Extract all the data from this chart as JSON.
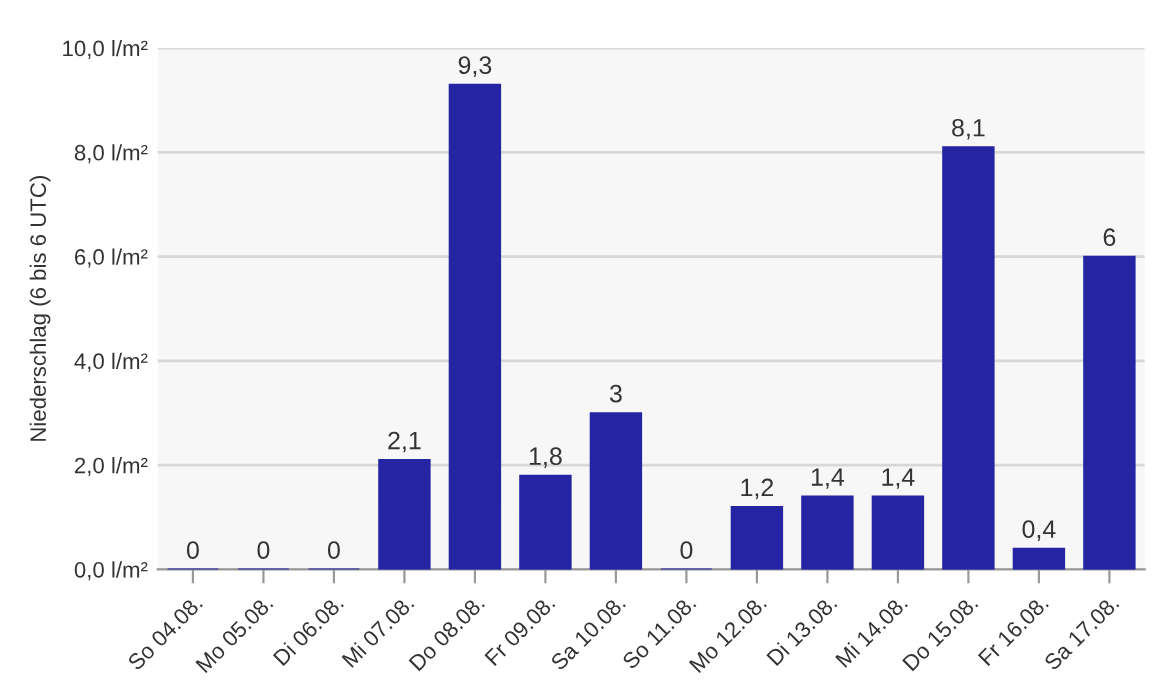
{
  "chart_data": {
    "type": "bar",
    "ylabel": "Niederschlag (6 bis 6 UTC)",
    "categories": [
      "So 04.08.",
      "Mo 05.08.",
      "Di 06.08.",
      "Mi 07.08.",
      "Do 08.08.",
      "Fr 09.08.",
      "Sa 10.08.",
      "So 11.08.",
      "Mo 12.08.",
      "Di 13.08.",
      "Mi 14.08.",
      "Do 15.08.",
      "Fr 16.08.",
      "Sa 17.08."
    ],
    "values": [
      0,
      0,
      0,
      2.1,
      9.3,
      1.8,
      3,
      0,
      1.2,
      1.4,
      1.4,
      8.1,
      0.4,
      6
    ],
    "value_labels": [
      "0",
      "0",
      "0",
      "2,1",
      "9,3",
      "1,8",
      "3",
      "0",
      "1,2",
      "1,4",
      "1,4",
      "8,1",
      "0,4",
      "6"
    ],
    "color": "#2525a4",
    "ylim": [
      0,
      10
    ],
    "yticks": [
      {
        "value": 0,
        "label": "0,0 l/m²"
      },
      {
        "value": 2,
        "label": "2,0 l/m²"
      },
      {
        "value": 4,
        "label": "4,0 l/m²"
      },
      {
        "value": 6,
        "label": "6,0 l/m²"
      },
      {
        "value": 8,
        "label": "8,0 l/m²"
      },
      {
        "value": 10,
        "label": "10,0 l/m²"
      }
    ],
    "grid": "y"
  }
}
